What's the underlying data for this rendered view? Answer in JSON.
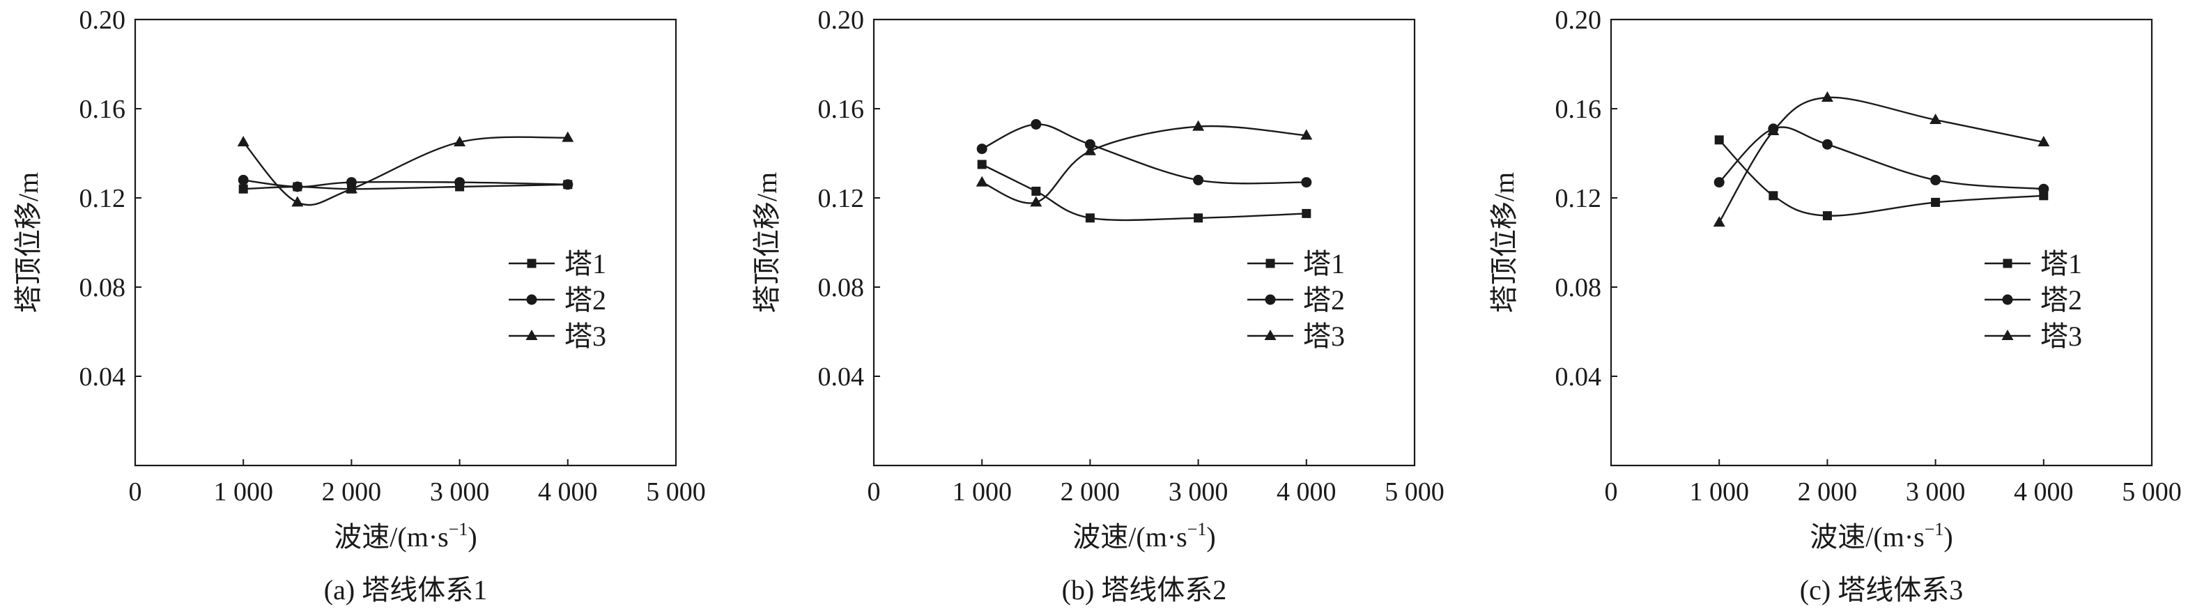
{
  "chart_data": [
    {
      "type": "line",
      "caption": "(a) 塔线体系1",
      "xlabel": "波速/(m·s⁻¹)",
      "ylabel": "塔顶位移/m",
      "xlim": [
        0,
        5000
      ],
      "ylim": [
        0.0,
        0.2
      ],
      "xticks": [
        "0",
        "1 000",
        "2 000",
        "3 000",
        "4 000",
        "5 000"
      ],
      "yticks": [
        "0.04",
        "0.08",
        "0.12",
        "0.16",
        "0.20"
      ],
      "x": [
        1000,
        1500,
        2000,
        3000,
        4000
      ],
      "legend_position": "right",
      "series": [
        {
          "name": "塔1",
          "marker": "square",
          "values": [
            0.124,
            0.125,
            0.124,
            0.125,
            0.126
          ]
        },
        {
          "name": "塔2",
          "marker": "circle",
          "values": [
            0.128,
            0.125,
            0.127,
            0.127,
            0.126
          ]
        },
        {
          "name": "塔3",
          "marker": "triangle",
          "values": [
            0.145,
            0.118,
            0.124,
            0.145,
            0.147
          ]
        }
      ]
    },
    {
      "type": "line",
      "caption": "(b) 塔线体系2",
      "xlabel": "波速/(m·s⁻¹)",
      "ylabel": "塔顶位移/m",
      "xlim": [
        0,
        5000
      ],
      "ylim": [
        0.0,
        0.2
      ],
      "xticks": [
        "0",
        "1 000",
        "2 000",
        "3 000",
        "4 000",
        "5 000"
      ],
      "yticks": [
        "0.04",
        "0.08",
        "0.12",
        "0.16",
        "0.20"
      ],
      "x": [
        1000,
        1500,
        2000,
        3000,
        4000
      ],
      "legend_position": "right",
      "series": [
        {
          "name": "塔1",
          "marker": "square",
          "values": [
            0.135,
            0.123,
            0.111,
            0.111,
            0.113
          ]
        },
        {
          "name": "塔2",
          "marker": "circle",
          "values": [
            0.142,
            0.153,
            0.144,
            0.128,
            0.127
          ]
        },
        {
          "name": "塔3",
          "marker": "triangle",
          "values": [
            0.127,
            0.118,
            0.141,
            0.152,
            0.148
          ]
        }
      ]
    },
    {
      "type": "line",
      "caption": "(c) 塔线体系3",
      "xlabel": "波速/(m·s⁻¹)",
      "ylabel": "塔顶位移/m",
      "xlim": [
        0,
        5000
      ],
      "ylim": [
        0.0,
        0.2
      ],
      "xticks": [
        "0",
        "1 000",
        "2 000",
        "3 000",
        "4 000",
        "5 000"
      ],
      "yticks": [
        "0.04",
        "0.08",
        "0.12",
        "0.16",
        "0.20"
      ],
      "x": [
        1000,
        1500,
        2000,
        3000,
        4000
      ],
      "legend_position": "right",
      "series": [
        {
          "name": "塔1",
          "marker": "square",
          "values": [
            0.146,
            0.121,
            0.112,
            0.118,
            0.121
          ]
        },
        {
          "name": "塔2",
          "marker": "circle",
          "values": [
            0.127,
            0.151,
            0.144,
            0.128,
            0.124
          ]
        },
        {
          "name": "塔3",
          "marker": "triangle",
          "values": [
            0.109,
            0.15,
            0.165,
            0.155,
            0.145
          ]
        }
      ]
    }
  ]
}
